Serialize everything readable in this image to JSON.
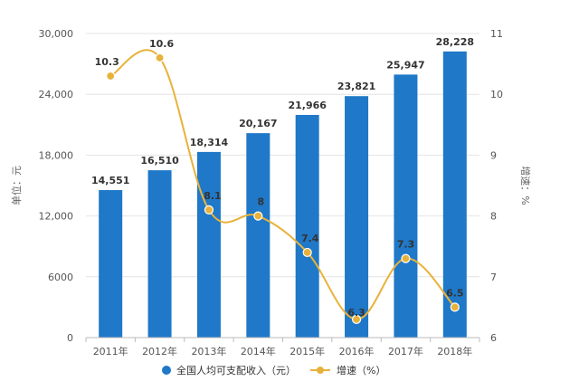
{
  "chart_data": {
    "type": "bar",
    "categories": [
      "2011年",
      "2012年",
      "2013年",
      "2014年",
      "2015年",
      "2016年",
      "2017年",
      "2018年"
    ],
    "series": [
      {
        "name": "全国人均可支配收入（元）",
        "type": "bar",
        "axis": "left",
        "color": "#1f78c8",
        "values": [
          14551,
          16510,
          18314,
          20167,
          21966,
          23821,
          25947,
          28228
        ],
        "labels": [
          "14,551",
          "16,510",
          "18,314",
          "20,167",
          "21,966",
          "23,821",
          "25,947",
          "28,228"
        ]
      },
      {
        "name": "增速（%）",
        "type": "line",
        "axis": "right",
        "color": "#e8b23a",
        "values": [
          10.3,
          10.6,
          8.1,
          8,
          7.4,
          6.3,
          7.3,
          6.5
        ],
        "labels": [
          "10.3",
          "10.6",
          "8.1",
          "8",
          "7.4",
          "6.3",
          "7.3",
          "6.5"
        ]
      }
    ],
    "y_left": {
      "label": "单位：元",
      "min": 0,
      "max": 30000,
      "ticks": [
        0,
        6000,
        12000,
        18000,
        24000,
        30000
      ],
      "tick_labels": [
        "0",
        "6000",
        "12,000",
        "18,000",
        "24,000",
        "30,000"
      ]
    },
    "y_right": {
      "label": "增速：%",
      "min": 6,
      "max": 11,
      "ticks": [
        6,
        7,
        8,
        9,
        10,
        11
      ],
      "tick_labels": [
        "6",
        "7",
        "8",
        "9",
        "10",
        "11"
      ]
    },
    "grid": true,
    "legend": "bottom-center"
  }
}
